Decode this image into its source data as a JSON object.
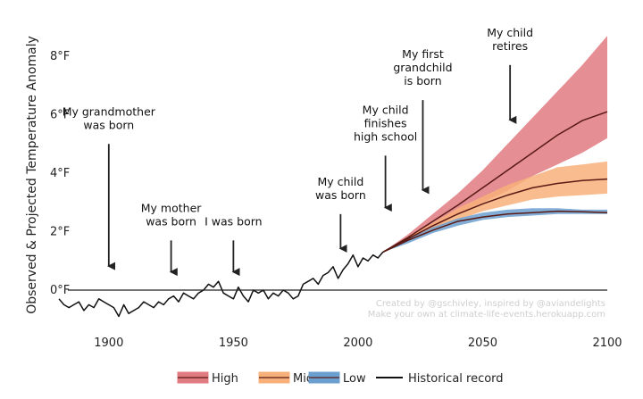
{
  "chart_data": {
    "type": "line",
    "ylabel": "Observed & Projected Temperature Anomaly",
    "xlabel": "",
    "xlim": [
      1880,
      2100
    ],
    "ylim": [
      -1.3,
      8.8
    ],
    "x_ticks": [
      1900,
      1950,
      2000,
      2050,
      2100
    ],
    "x_tick_labels": [
      "1900",
      "1950",
      "2000",
      "2050",
      "2100"
    ],
    "y_ticks": [
      0,
      2,
      4,
      6,
      8
    ],
    "y_tick_labels": [
      "0°F",
      "2°F",
      "4°F",
      "6°F",
      "8°F"
    ],
    "zero_line": true,
    "grid": false,
    "legend_placement": "bottom",
    "legend": [
      {
        "label": "High",
        "color": "#e07b82"
      },
      {
        "label": "Mid",
        "color": "#f8b07a"
      },
      {
        "label": "Low",
        "color": "#6b9fcf"
      },
      {
        "label": "Historical record",
        "color": "#111111"
      }
    ],
    "historical": {
      "x": [
        1880,
        1882,
        1884,
        1886,
        1888,
        1890,
        1892,
        1894,
        1896,
        1898,
        1900,
        1902,
        1904,
        1906,
        1908,
        1910,
        1912,
        1914,
        1916,
        1918,
        1920,
        1922,
        1924,
        1926,
        1928,
        1930,
        1932,
        1934,
        1936,
        1938,
        1940,
        1942,
        1944,
        1946,
        1948,
        1950,
        1952,
        1954,
        1956,
        1958,
        1960,
        1962,
        1964,
        1966,
        1968,
        1970,
        1972,
        1974,
        1976,
        1978,
        1980,
        1982,
        1984,
        1986,
        1988,
        1990,
        1992,
        1994,
        1996,
        1998,
        2000,
        2002,
        2004,
        2006,
        2008,
        2010
      ],
      "y": [
        -0.3,
        -0.5,
        -0.6,
        -0.5,
        -0.4,
        -0.7,
        -0.5,
        -0.6,
        -0.3,
        -0.4,
        -0.5,
        -0.6,
        -0.9,
        -0.5,
        -0.8,
        -0.7,
        -0.6,
        -0.4,
        -0.5,
        -0.6,
        -0.4,
        -0.5,
        -0.3,
        -0.2,
        -0.4,
        -0.1,
        -0.2,
        -0.3,
        -0.1,
        0.0,
        0.2,
        0.1,
        0.3,
        -0.1,
        -0.2,
        -0.3,
        0.1,
        -0.2,
        -0.4,
        0.0,
        -0.1,
        0.0,
        -0.3,
        -0.1,
        -0.2,
        0.0,
        -0.1,
        -0.3,
        -0.2,
        0.2,
        0.3,
        0.4,
        0.2,
        0.5,
        0.6,
        0.8,
        0.4,
        0.7,
        0.9,
        1.2,
        0.8,
        1.1,
        1.0,
        1.2,
        1.1,
        1.3
      ]
    },
    "projection_x": [
      2010,
      2020,
      2030,
      2040,
      2050,
      2060,
      2070,
      2080,
      2090,
      2100
    ],
    "bands": [
      {
        "name": "High",
        "color": "#e07b82",
        "lower": [
          1.3,
          1.7,
          2.1,
          2.6,
          3.0,
          3.4,
          3.9,
          4.3,
          4.7,
          5.2
        ],
        "upper": [
          1.3,
          1.9,
          2.6,
          3.3,
          4.1,
          5.0,
          5.9,
          6.8,
          7.7,
          8.7
        ],
        "center": [
          1.3,
          1.8,
          2.35,
          2.9,
          3.5,
          4.1,
          4.7,
          5.3,
          5.8,
          6.1
        ]
      },
      {
        "name": "Mid",
        "color": "#f8b07a",
        "lower": [
          1.3,
          1.7,
          2.1,
          2.4,
          2.7,
          2.9,
          3.1,
          3.2,
          3.25,
          3.3
        ],
        "upper": [
          1.3,
          1.8,
          2.3,
          2.8,
          3.2,
          3.6,
          3.9,
          4.2,
          4.3,
          4.4
        ],
        "center": [
          1.3,
          1.75,
          2.2,
          2.6,
          2.95,
          3.25,
          3.5,
          3.65,
          3.75,
          3.8
        ]
      },
      {
        "name": "Low",
        "color": "#6b9fcf",
        "lower": [
          1.3,
          1.6,
          1.95,
          2.2,
          2.4,
          2.5,
          2.55,
          2.6,
          2.6,
          2.6
        ],
        "upper": [
          1.3,
          1.75,
          2.15,
          2.45,
          2.65,
          2.75,
          2.8,
          2.8,
          2.75,
          2.75
        ],
        "center": [
          1.3,
          1.7,
          2.05,
          2.35,
          2.5,
          2.6,
          2.65,
          2.7,
          2.68,
          2.65
        ]
      }
    ],
    "annotations": [
      {
        "lines": [
          "My grandmother",
          "was born"
        ],
        "x": 1900,
        "arrow_from": 5.0,
        "arrow_to": 0.7
      },
      {
        "lines": [
          "My mother",
          "was born"
        ],
        "x": 1925,
        "arrow_from": 1.7,
        "arrow_to": 0.5
      },
      {
        "lines": [
          "I was born"
        ],
        "x": 1950,
        "arrow_from": 1.7,
        "arrow_to": 0.5
      },
      {
        "lines": [
          "My child",
          "was born"
        ],
        "x": 1993,
        "arrow_from": 2.6,
        "arrow_to": 1.3
      },
      {
        "lines": [
          "My child",
          "finishes",
          "high school"
        ],
        "x": 2011,
        "arrow_from": 4.6,
        "arrow_to": 2.7
      },
      {
        "lines": [
          "My first",
          "grandchild",
          "is born"
        ],
        "x": 2026,
        "arrow_from": 6.5,
        "arrow_to": 3.3
      },
      {
        "lines": [
          "My child",
          "retires"
        ],
        "x": 2061,
        "arrow_from": 7.7,
        "arrow_to": 5.7
      }
    ],
    "credits": [
      "Created by @gschivley, inspired by @aviandelights",
      "Make your own at climate-life-events.herokuapp.com"
    ]
  }
}
